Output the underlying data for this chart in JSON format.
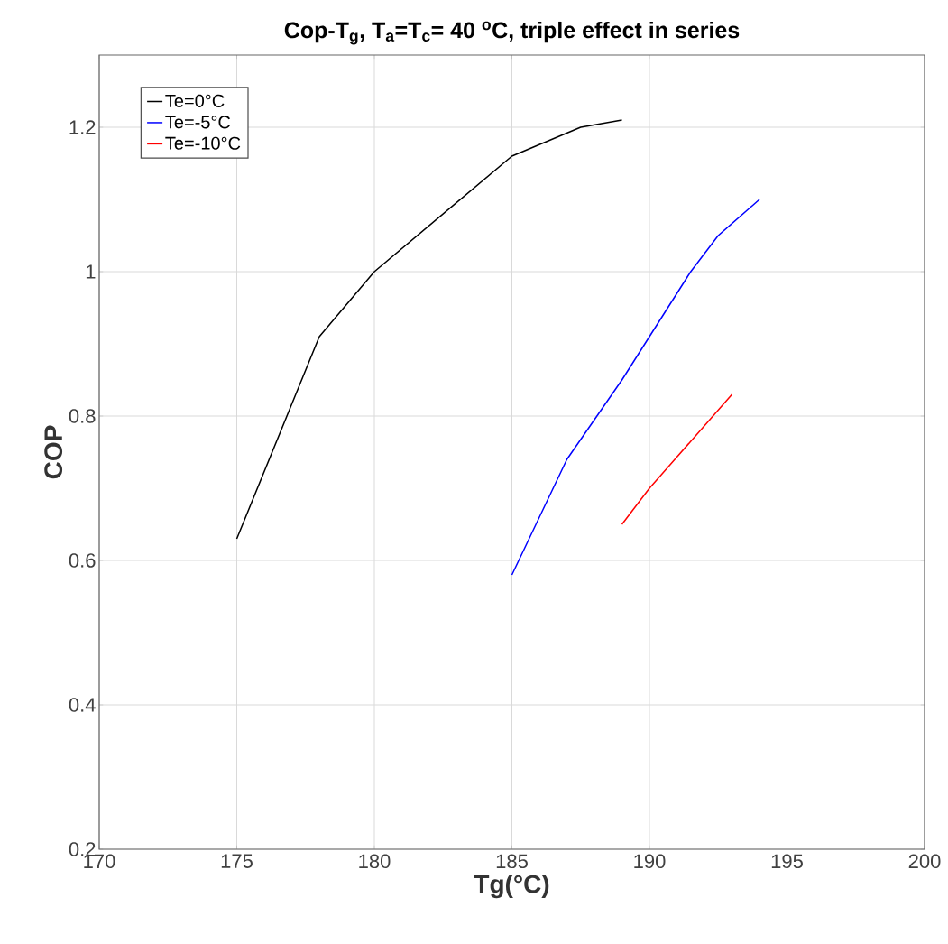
{
  "chart_data": {
    "type": "line",
    "title": "Cop-T$_{g}$, T$_{a}$=T$_{c}$= 40 $^{o}$C, triple effect in series",
    "xlabel": "Tg(°C)",
    "ylabel": "COP",
    "xlim": [
      170,
      200
    ],
    "xticks": [
      170,
      175,
      180,
      185,
      190,
      195,
      200
    ],
    "ylim": [
      0.2,
      1.3
    ],
    "yticks": [
      0.2,
      0.4,
      0.6,
      0.8,
      1,
      1.2
    ],
    "grid": true,
    "legend": "top left",
    "marker": "none",
    "line_style": "solid",
    "series": [
      {
        "name": "Te=0°C",
        "color": "#000000",
        "x": [
          175,
          178,
          180,
          185,
          187.5,
          189
        ],
        "values": [
          0.63,
          0.91,
          1.0,
          1.16,
          1.2,
          1.21
        ]
      },
      {
        "name": "Te=-5°C",
        "color": "#0000ff",
        "x": [
          185,
          187,
          189,
          191.5,
          192.5,
          194
        ],
        "values": [
          0.58,
          0.74,
          0.85,
          1.0,
          1.05,
          1.1
        ]
      },
      {
        "name": "Te=-10°C",
        "color": "#ff0000",
        "x": [
          189,
          190,
          193
        ],
        "values": [
          0.65,
          0.7,
          0.83
        ]
      }
    ]
  }
}
